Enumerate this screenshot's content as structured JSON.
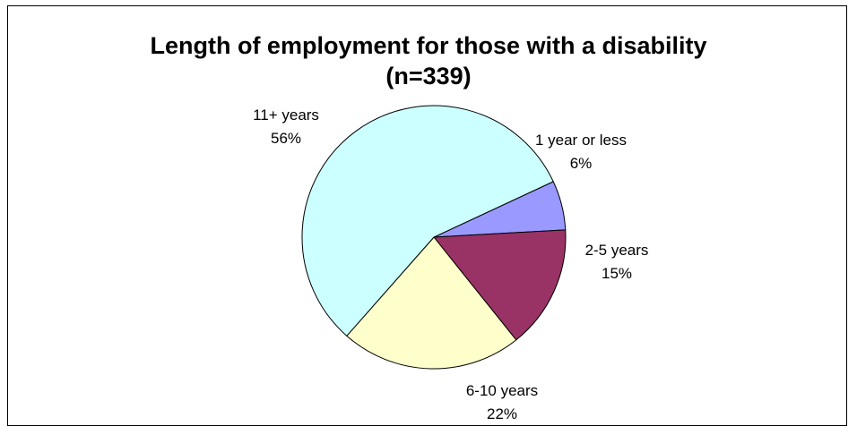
{
  "chart_data": {
    "type": "pie",
    "title": "Length of employment for those with a disability",
    "subtitle": "(n=339)",
    "start_angle_deg": 65,
    "slices": [
      {
        "label": "1 year or less",
        "percent_text": "6%",
        "value": 6,
        "color": "#9999ff"
      },
      {
        "label": "2-5 years",
        "percent_text": "15%",
        "value": 15,
        "color": "#993366"
      },
      {
        "label": "6-10 years",
        "percent_text": "22%",
        "value": 22,
        "color": "#ffffcc"
      },
      {
        "label": "11+ years",
        "percent_text": "56%",
        "value": 56,
        "color": "#ccffff"
      }
    ],
    "legend": "none"
  }
}
